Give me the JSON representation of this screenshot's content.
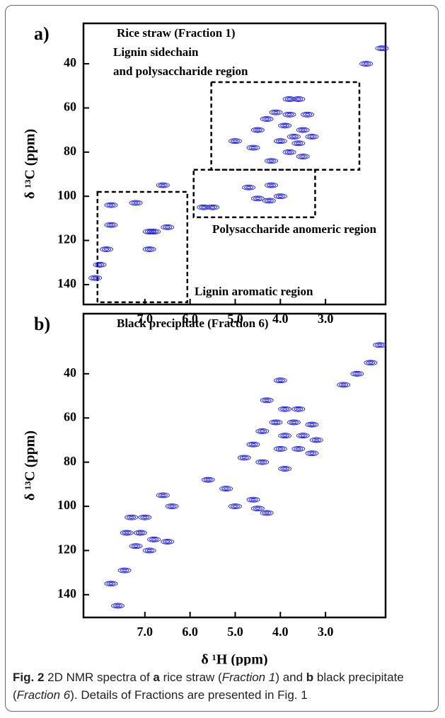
{
  "chart_data": [
    {
      "type": "scatter",
      "panel_label": "a)",
      "title": "Rice straw (Fraction 1)",
      "ylabel": "δ ¹³C (ppm)",
      "color": "#1a1adb",
      "xlim": [
        8.36,
        1.67
      ],
      "ylim": [
        21.7,
        149
      ],
      "xticks": [
        {
          "value": 7,
          "label": "7.0"
        },
        {
          "value": 6,
          "label": "6.0"
        },
        {
          "value": 5,
          "label": "5.0"
        },
        {
          "value": 4,
          "label": "4.0"
        },
        {
          "value": 3,
          "label": "3.0"
        }
      ],
      "yticks": [
        40,
        60,
        80,
        100,
        120,
        140
      ],
      "regions": [
        {
          "label": [
            "Lignin sidechain",
            "and polysaccharide region"
          ],
          "xlim": [
            5.53,
            2.25
          ],
          "ylim": [
            48.3,
            88
          ]
        },
        {
          "label": [
            "Polysaccharide anomeric region"
          ],
          "xlim": [
            5.92,
            3.23
          ],
          "ylim": [
            88,
            109.5
          ]
        },
        {
          "label": [
            "Lignin aromatic region"
          ],
          "xlim": [
            8.05,
            6.06
          ],
          "ylim": [
            98,
            148
          ]
        }
      ],
      "x": [
        1.75,
        2.1,
        3.8,
        3.6,
        4.1,
        3.8,
        3.4,
        4.3,
        3.9,
        3.5,
        4.5,
        3.7,
        3.3,
        4.0,
        3.6,
        5.0,
        4.6,
        3.8,
        3.5,
        4.2,
        4.2,
        4.7,
        4.5,
        4.25,
        4.0,
        5.7,
        5.5,
        7.75,
        7.2,
        6.6,
        7.75,
        6.9,
        6.8,
        6.5,
        7.85,
        6.9,
        8.0,
        8.1
      ],
      "values": [
        33,
        40,
        56,
        56,
        62,
        63,
        63,
        65,
        68,
        70,
        70,
        73,
        73,
        75,
        76,
        75,
        78,
        80,
        82,
        84,
        95,
        96,
        101,
        102,
        100,
        105,
        105,
        104,
        103,
        95,
        113,
        116,
        116,
        114,
        124,
        124,
        131,
        137
      ]
    },
    {
      "type": "scatter",
      "panel_label": "b)",
      "title": "Black precipitate (Fraction 6)",
      "ylabel": "δ ¹³C (ppm)",
      "xlabel": "δ ¹H (ppm)",
      "color": "#1a1adb",
      "xlim": [
        8.36,
        1.67
      ],
      "ylim": [
        12.8,
        150.3
      ],
      "xticks": [
        {
          "value": 7,
          "label": "7.0"
        },
        {
          "value": 6,
          "label": "6.0"
        },
        {
          "value": 5,
          "label": "5.0"
        },
        {
          "value": 4,
          "label": "4.0"
        },
        {
          "value": 3,
          "label": "3.0"
        }
      ],
      "yticks": [
        40,
        60,
        80,
        100,
        120,
        140
      ],
      "x": [
        1.8,
        2.0,
        2.3,
        2.6,
        4.0,
        4.3,
        3.9,
        3.6,
        4.1,
        3.7,
        3.3,
        4.4,
        3.9,
        3.5,
        3.2,
        4.6,
        4.0,
        3.6,
        3.3,
        4.8,
        4.4,
        3.9,
        5.6,
        5.2,
        4.6,
        5.0,
        4.5,
        4.3,
        6.6,
        6.4,
        7.3,
        7.0,
        7.4,
        7.1,
        6.8,
        6.5,
        7.2,
        6.9,
        7.45,
        7.75,
        7.6
      ],
      "values": [
        27,
        35,
        40,
        45,
        43,
        52,
        56,
        56,
        62,
        62,
        63,
        66,
        68,
        68,
        70,
        72,
        74,
        74,
        76,
        78,
        80,
        83,
        88,
        92,
        97,
        100,
        101,
        103,
        95,
        100,
        105,
        105,
        112,
        112,
        115,
        116,
        118,
        120,
        129,
        135,
        145
      ]
    }
  ],
  "caption": [
    "Fig. 2",
    " 2D NMR spectra of ",
    "a",
    " rice straw (",
    "Fraction 1",
    ") and ",
    "b",
    " black precipitate (",
    "Fraction 6",
    "). Details of Fractions are presented in Fig. 1"
  ]
}
